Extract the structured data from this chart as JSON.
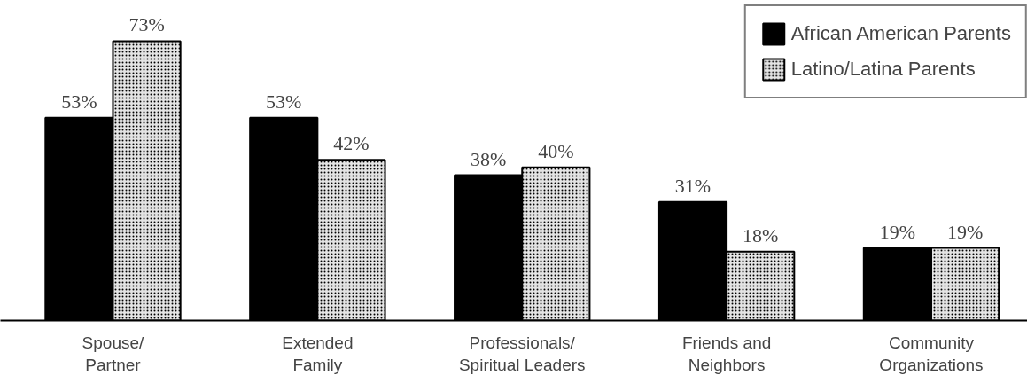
{
  "chart_data": {
    "type": "bar",
    "categories": [
      "Spouse/\nPartner",
      "Extended\nFamily",
      "Professionals/\nSpiritual Leaders",
      "Friends and\nNeighbors",
      "Community\nOrganizations"
    ],
    "series": [
      {
        "name": "African American Parents",
        "color": "#000000",
        "values": [
          53,
          53,
          38,
          31,
          19
        ],
        "value_labels": [
          "53%",
          "53%",
          "38%",
          "31%",
          "19%"
        ]
      },
      {
        "name": "Latino/Latina Parents",
        "color": "#e4e4e4",
        "values": [
          73,
          42,
          40,
          18,
          19
        ],
        "value_labels": [
          "73%",
          "42%",
          "40%",
          "18%",
          "19%"
        ]
      }
    ],
    "legend": "top right",
    "grid": false
  }
}
